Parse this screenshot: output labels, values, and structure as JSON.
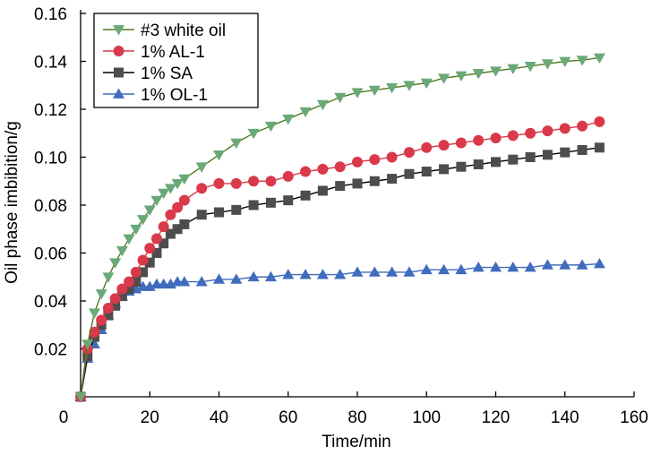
{
  "chart_data": {
    "type": "line",
    "title": "",
    "xlabel": "Time/min",
    "ylabel": "Oil phase imbibition/g",
    "xlim": [
      0,
      160
    ],
    "ylim": [
      0,
      0.16
    ],
    "xticks": [
      0,
      20,
      40,
      60,
      80,
      100,
      120,
      140,
      160
    ],
    "yticks": [
      0.02,
      0.04,
      0.06,
      0.08,
      0.1,
      0.12,
      0.14,
      0.16
    ],
    "xtick_labels": [
      "0",
      "20",
      "40",
      "60",
      "80",
      "100",
      "120",
      "140",
      "160"
    ],
    "ytick_labels": [
      "0.02",
      "0.04",
      "0.06",
      "0.08",
      "0.10",
      "0.12",
      "0.14",
      "0.16"
    ],
    "grid": false,
    "legend_position": "top-left",
    "x": [
      0,
      2,
      4,
      6,
      8,
      10,
      12,
      14,
      16,
      18,
      20,
      22,
      24,
      26,
      28,
      30,
      35,
      40,
      45,
      50,
      55,
      60,
      65,
      70,
      75,
      80,
      85,
      90,
      95,
      100,
      105,
      110,
      115,
      120,
      125,
      130,
      135,
      140,
      145,
      150
    ],
    "series": [
      {
        "name": "#3 white oil",
        "color": "#6aa878",
        "line_color": "#4e7a1e",
        "marker": "triangle-down",
        "values": [
          0,
          0.022,
          0.035,
          0.043,
          0.05,
          0.056,
          0.061,
          0.066,
          0.07,
          0.074,
          0.078,
          0.082,
          0.085,
          0.087,
          0.089,
          0.091,
          0.096,
          0.101,
          0.106,
          0.11,
          0.113,
          0.116,
          0.119,
          0.122,
          0.125,
          0.127,
          0.128,
          0.129,
          0.13,
          0.131,
          0.133,
          0.134,
          0.135,
          0.136,
          0.137,
          0.138,
          0.139,
          0.14,
          0.1405,
          0.1415
        ]
      },
      {
        "name": "1% AL-1",
        "color": "#d9394a",
        "line_color": "#d9394a",
        "marker": "circle",
        "values": [
          0,
          0.02,
          0.027,
          0.032,
          0.037,
          0.041,
          0.045,
          0.048,
          0.052,
          0.057,
          0.062,
          0.066,
          0.071,
          0.076,
          0.079,
          0.082,
          0.087,
          0.089,
          0.089,
          0.09,
          0.09,
          0.092,
          0.094,
          0.095,
          0.096,
          0.098,
          0.099,
          0.1,
          0.102,
          0.104,
          0.105,
          0.106,
          0.107,
          0.108,
          0.109,
          0.11,
          0.111,
          0.112,
          0.113,
          0.1148
        ]
      },
      {
        "name": "1% SA",
        "color": "#4d4d4d",
        "line_color": "#000000",
        "marker": "square",
        "values": [
          0,
          0.017,
          0.025,
          0.03,
          0.034,
          0.038,
          0.042,
          0.045,
          0.048,
          0.052,
          0.056,
          0.06,
          0.064,
          0.068,
          0.07,
          0.072,
          0.076,
          0.077,
          0.078,
          0.08,
          0.081,
          0.082,
          0.084,
          0.086,
          0.088,
          0.089,
          0.09,
          0.091,
          0.093,
          0.094,
          0.095,
          0.096,
          0.097,
          0.098,
          0.099,
          0.1,
          0.101,
          0.102,
          0.103,
          0.104
        ]
      },
      {
        "name": "1% OL-1",
        "color": "#3f6cbd",
        "line_color": "#3f6cbd",
        "marker": "triangle-up",
        "values": [
          0,
          0.016,
          0.022,
          0.028,
          0.034,
          0.039,
          0.042,
          0.044,
          0.045,
          0.046,
          0.046,
          0.047,
          0.047,
          0.047,
          0.048,
          0.048,
          0.048,
          0.049,
          0.049,
          0.05,
          0.05,
          0.051,
          0.051,
          0.051,
          0.051,
          0.052,
          0.052,
          0.052,
          0.052,
          0.053,
          0.053,
          0.053,
          0.054,
          0.054,
          0.054,
          0.054,
          0.055,
          0.055,
          0.055,
          0.0555
        ]
      }
    ],
    "origin_label": "0"
  }
}
